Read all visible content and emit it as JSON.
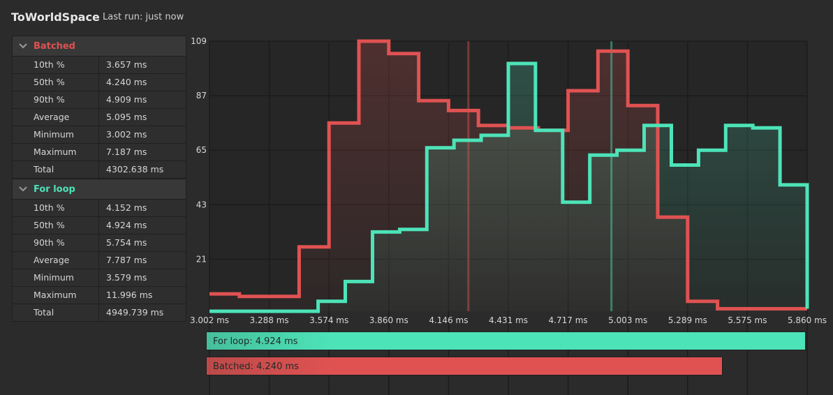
{
  "header": {
    "title": "ToWorldSpace",
    "last_run": "Last run: just now"
  },
  "colors": {
    "batched": "#e05252",
    "for_loop": "#4de3b8"
  },
  "groups": [
    {
      "name": "Batched",
      "color": "#e05252",
      "stats": [
        {
          "label": "10th %",
          "value": "3.657 ms"
        },
        {
          "label": "50th %",
          "value": "4.240 ms"
        },
        {
          "label": "90th %",
          "value": "4.909 ms"
        },
        {
          "label": "Average",
          "value": "5.095 ms"
        },
        {
          "label": "Minimum",
          "value": "3.002 ms"
        },
        {
          "label": "Maximum",
          "value": "7.187 ms"
        },
        {
          "label": "Total",
          "value": "4302.638 ms"
        }
      ]
    },
    {
      "name": "For loop",
      "color": "#4de3b8",
      "stats": [
        {
          "label": "10th %",
          "value": "4.152 ms"
        },
        {
          "label": "50th %",
          "value": "4.924 ms"
        },
        {
          "label": "90th %",
          "value": "5.754 ms"
        },
        {
          "label": "Average",
          "value": "7.787 ms"
        },
        {
          "label": "Minimum",
          "value": "3.579 ms"
        },
        {
          "label": "Maximum",
          "value": "11.996 ms"
        },
        {
          "label": "Total",
          "value": "4949.739 ms"
        }
      ]
    }
  ],
  "chart_data": {
    "type": "area",
    "x_ticks": [
      "3.002 ms",
      "3.288 ms",
      "3.574 ms",
      "3.860 ms",
      "4.146 ms",
      "4.431 ms",
      "4.717 ms",
      "5.003 ms",
      "5.289 ms",
      "5.575 ms",
      "5.860 ms"
    ],
    "y_ticks": [
      "109",
      "87",
      "65",
      "43",
      "21"
    ],
    "xlim": [
      3.002,
      5.86
    ],
    "ylim": [
      0,
      109
    ],
    "grid": true,
    "bins": 20,
    "series": [
      {
        "name": "Batched",
        "color": "#e05252",
        "values": [
          7,
          6,
          6,
          26,
          76,
          109,
          104,
          85,
          81,
          75,
          74,
          73,
          89,
          105,
          83,
          38,
          4,
          1,
          1,
          1,
          1
        ],
        "median": 4.24
      },
      {
        "name": "For loop",
        "color": "#4de3b8",
        "values": [
          0,
          0,
          0,
          0,
          4,
          12,
          32,
          33,
          66,
          69,
          71,
          100,
          73,
          44,
          63,
          65,
          75,
          59,
          65,
          75,
          74,
          51,
          1
        ],
        "median": 4.924
      }
    ]
  },
  "summary_bars": [
    {
      "label": "For loop: 4.924 ms",
      "value": 4.924,
      "color": "#4de3b8"
    },
    {
      "label": "Batched: 4.240 ms",
      "value": 4.24,
      "color": "#e05252"
    }
  ]
}
